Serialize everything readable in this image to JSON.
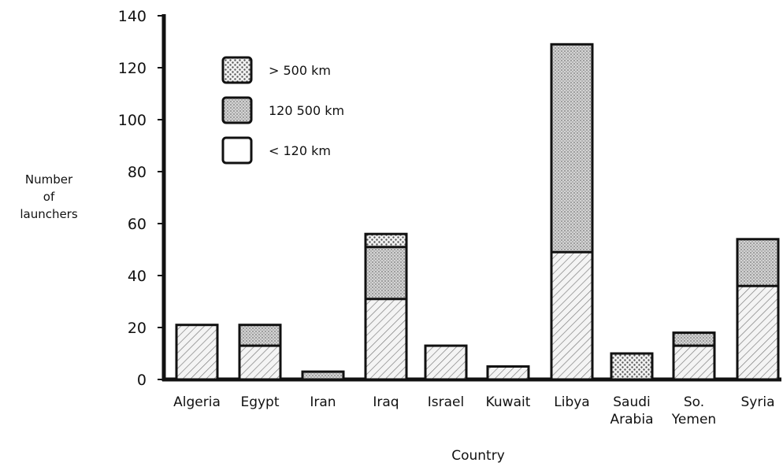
{
  "chart_data": {
    "type": "bar",
    "stacked": true,
    "xlabel": "Country",
    "ylabel": [
      "Number",
      "of",
      "launchers"
    ],
    "ylim": [
      0,
      140
    ],
    "yticks": [
      0,
      20,
      40,
      60,
      80,
      100,
      120,
      140
    ],
    "categories": [
      [
        "Algeria"
      ],
      [
        "Egypt"
      ],
      [
        "Iran"
      ],
      [
        "Iraq"
      ],
      [
        "Israel"
      ],
      [
        "Kuwait"
      ],
      [
        "Libya"
      ],
      [
        "Saudi",
        "Arabia"
      ],
      [
        "So.",
        "Yemen"
      ],
      [
        "Syria"
      ]
    ],
    "series": [
      {
        "name": "< 120 km",
        "pattern": "hatch",
        "values": [
          21,
          13,
          0,
          31,
          13,
          5,
          49,
          0,
          13,
          36
        ]
      },
      {
        "name": "120  500 km",
        "pattern": "dark",
        "values": [
          0,
          8,
          3,
          20,
          0,
          0,
          80,
          0,
          5,
          18
        ]
      },
      {
        "name": "> 500 km",
        "pattern": "dots",
        "values": [
          0,
          0,
          0,
          5,
          0,
          0,
          0,
          10,
          0,
          0
        ]
      }
    ],
    "legend": {
      "placement": "top-left",
      "entries": [
        {
          "label": "> 500 km",
          "pattern": "dots"
        },
        {
          "label": "120  500 km",
          "pattern": "dark"
        },
        {
          "label": "< 120 km",
          "pattern": "light"
        }
      ]
    },
    "grid": false
  }
}
